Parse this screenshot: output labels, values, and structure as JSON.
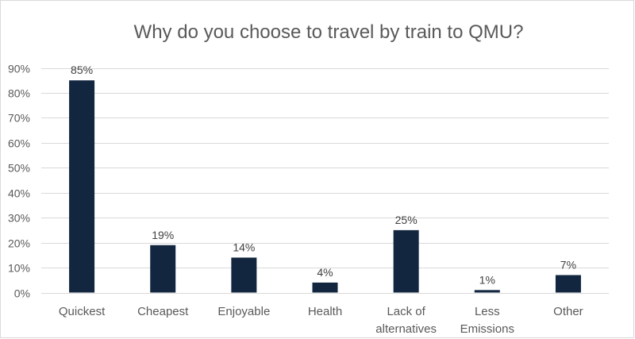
{
  "chart_data": {
    "type": "bar",
    "title": "Why do you choose to travel by train to QMU?",
    "categories": [
      [
        "Quickest"
      ],
      [
        "Cheapest"
      ],
      [
        "Enjoyable"
      ],
      [
        "Health"
      ],
      [
        "Lack of",
        "alternatives"
      ],
      [
        "Less",
        "Emissions"
      ],
      [
        "Other"
      ]
    ],
    "values": [
      85,
      19,
      14,
      4,
      25,
      1,
      7
    ],
    "data_labels": [
      "85%",
      "19%",
      "14%",
      "4%",
      "25%",
      "1%",
      "7%"
    ],
    "ylim": [
      0,
      90
    ],
    "yticks": [
      "0%",
      "10%",
      "20%",
      "30%",
      "40%",
      "50%",
      "60%",
      "70%",
      "80%",
      "90%"
    ],
    "xlabel": "",
    "ylabel": "",
    "grid": true,
    "legend": "none",
    "bar_color": "#13263F"
  }
}
